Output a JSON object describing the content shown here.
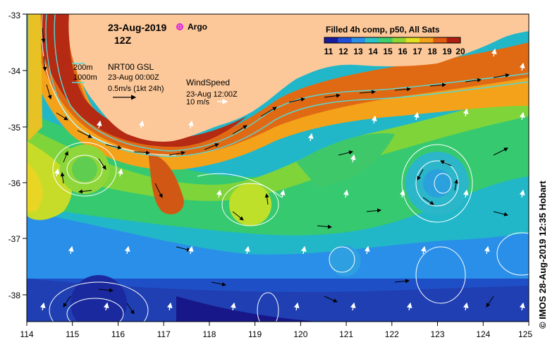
{
  "header": {
    "date": "23-Aug-2019",
    "hour": "12Z",
    "argo_label": "Argo",
    "product": "Filled 4h comp, p50, All Sats"
  },
  "colorbar": {
    "ticks": [
      "11",
      "12",
      "13",
      "14",
      "15",
      "16",
      "17",
      "18",
      "19",
      "20"
    ],
    "colors": [
      "#1a1a9e",
      "#1f4fd6",
      "#2a8fe8",
      "#2bc4c4",
      "#3ccf6b",
      "#8fd633",
      "#e3e022",
      "#f4a21a",
      "#e05a12",
      "#b01e10"
    ]
  },
  "legend_currents": {
    "contour_200": "200m",
    "contour_1000": "1000m",
    "source": "NRT00 GSL",
    "time": "23-Aug 00:00Z",
    "scale": "0.5m/s (1kt 24h)"
  },
  "legend_wind": {
    "title": "WindSpeed",
    "time": "23-Aug 12:00Z",
    "scale": "10 m/s"
  },
  "axes": {
    "lon_ticks": [
      "114",
      "115",
      "116",
      "117",
      "118",
      "119",
      "120",
      "121",
      "122",
      "123",
      "124",
      "125"
    ],
    "lat_ticks": [
      "-33",
      "-34",
      "-35",
      "-36",
      "-37",
      "-38"
    ]
  },
  "credit": "© IMOS 28-Aug-2019 12:35 Hobart",
  "colors": {
    "land": "#fcc89a",
    "contour": "#55d9d9",
    "ssh_contour": "#ffffff"
  }
}
